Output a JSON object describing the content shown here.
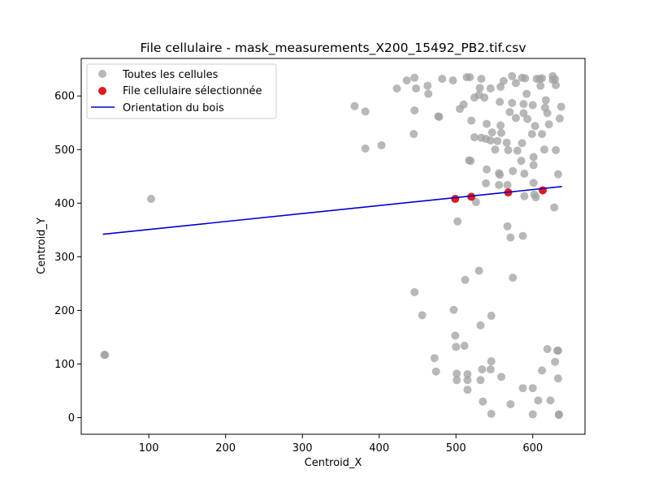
{
  "chart_data": {
    "type": "scatter",
    "title": "File cellulaire - mask_measurements_X200_15492_PB2.tif.csv",
    "xlabel": "Centroid_X",
    "ylabel": "Centroid_Y",
    "xlim": [
      12,
      668
    ],
    "ylim": [
      -31,
      670
    ],
    "xticks": [
      "100",
      "200",
      "300",
      "400",
      "500",
      "600"
    ],
    "yticks": [
      "0",
      "100",
      "200",
      "300",
      "400",
      "500",
      "600"
    ],
    "grid": false,
    "legend_position": "upper-left",
    "series": [
      {
        "name": "Toutes les cellules",
        "kind": "scatter",
        "color": "#a0a0a0",
        "points": [
          [
            42,
            117
          ],
          [
            43,
            117
          ],
          [
            103,
            408
          ],
          [
            368,
            581
          ],
          [
            382,
            571
          ],
          [
            382,
            502
          ],
          [
            403,
            508
          ],
          [
            423,
            614
          ],
          [
            436,
            629
          ],
          [
            446,
            634
          ],
          [
            448,
            614
          ],
          [
            446,
            573
          ],
          [
            445,
            529
          ],
          [
            446,
            234
          ],
          [
            456,
            191
          ],
          [
            463,
            619
          ],
          [
            464,
            604
          ],
          [
            477,
            562
          ],
          [
            478,
            561
          ],
          [
            472,
            111
          ],
          [
            474,
            86
          ],
          [
            482,
            632
          ],
          [
            496,
            629
          ],
          [
            505,
            576
          ],
          [
            510,
            584
          ],
          [
            497,
            201
          ],
          [
            499,
            153
          ],
          [
            500,
            132
          ],
          [
            501,
            82
          ],
          [
            501,
            70
          ],
          [
            502,
            366
          ],
          [
            514,
            635
          ],
          [
            518,
            635
          ],
          [
            517,
            480
          ],
          [
            519,
            479
          ],
          [
            520,
            554
          ],
          [
            524,
            597
          ],
          [
            524,
            523
          ],
          [
            526,
            402
          ],
          [
            512,
            257
          ],
          [
            511,
            134
          ],
          [
            515,
            81
          ],
          [
            515,
            70
          ],
          [
            515,
            52
          ],
          [
            530,
            274
          ],
          [
            530,
            602
          ],
          [
            531,
            615
          ],
          [
            533,
            632
          ],
          [
            533,
            522
          ],
          [
            532,
            172
          ],
          [
            534,
            90
          ],
          [
            532,
            70
          ],
          [
            535,
            30
          ],
          [
            537,
            597
          ],
          [
            540,
            548
          ],
          [
            539,
            520
          ],
          [
            540,
            463
          ],
          [
            539,
            437
          ],
          [
            545,
            614
          ],
          [
            545,
            517
          ],
          [
            547,
            532
          ],
          [
            546,
            190
          ],
          [
            546,
            105
          ],
          [
            545,
            90
          ],
          [
            546,
            7
          ],
          [
            551,
            500
          ],
          [
            554,
            516
          ],
          [
            556,
            456
          ],
          [
            556,
            434
          ],
          [
            557,
            453
          ],
          [
            557,
            589
          ],
          [
            558,
            545
          ],
          [
            558,
            617
          ],
          [
            559,
            531
          ],
          [
            559,
            76
          ],
          [
            562,
            628
          ],
          [
            566,
            513
          ],
          [
            567,
            434
          ],
          [
            567,
            357
          ],
          [
            568,
            499
          ],
          [
            570,
            570
          ],
          [
            571,
            336
          ],
          [
            571,
            25
          ],
          [
            573,
            637
          ],
          [
            573,
            587
          ],
          [
            574,
            460
          ],
          [
            574,
            261
          ],
          [
            578,
            624
          ],
          [
            578,
            559
          ],
          [
            580,
            498
          ],
          [
            585,
            479
          ],
          [
            586,
            512
          ],
          [
            586,
            634
          ],
          [
            588,
            568
          ],
          [
            588,
            585
          ],
          [
            589,
            455
          ],
          [
            589,
            413
          ],
          [
            590,
            633
          ],
          [
            587,
            339
          ],
          [
            587,
            55
          ],
          [
            592,
            604
          ],
          [
            593,
            557
          ],
          [
            599,
            529
          ],
          [
            600,
            583
          ],
          [
            601,
            486
          ],
          [
            601,
            471
          ],
          [
            601,
            438
          ],
          [
            602,
            416
          ],
          [
            604,
            411
          ],
          [
            603,
            544
          ],
          [
            605,
            632
          ],
          [
            609,
            632
          ],
          [
            610,
            619
          ],
          [
            612,
            633
          ],
          [
            612,
            529
          ],
          [
            607,
            32
          ],
          [
            600,
            55
          ],
          [
            600,
            6
          ],
          [
            612,
            88
          ],
          [
            615,
            500
          ],
          [
            616,
            578
          ],
          [
            617,
            592
          ],
          [
            619,
            128
          ],
          [
            619,
            568
          ],
          [
            621,
            547
          ],
          [
            623,
            32
          ],
          [
            626,
            637
          ],
          [
            626,
            630
          ],
          [
            629,
            631
          ],
          [
            628,
            392
          ],
          [
            629,
            104
          ],
          [
            630,
            620
          ],
          [
            630,
            499
          ],
          [
            632,
            125
          ],
          [
            633,
            454
          ],
          [
            633,
            73
          ],
          [
            634,
            5
          ],
          [
            635,
            558
          ],
          [
            637,
            580
          ],
          [
            633,
            125
          ],
          [
            634,
            6
          ]
        ]
      },
      {
        "name": "File cellulaire sélectionnée",
        "kind": "scatter",
        "color": "#e31a1c",
        "points": [
          [
            499,
            408
          ],
          [
            520,
            412
          ],
          [
            568,
            420
          ],
          [
            613,
            424
          ]
        ]
      },
      {
        "name": "Orientation du bois",
        "kind": "line",
        "color": "#0000cc",
        "points": [
          [
            40,
            342
          ],
          [
            638,
            431
          ]
        ]
      }
    ]
  }
}
